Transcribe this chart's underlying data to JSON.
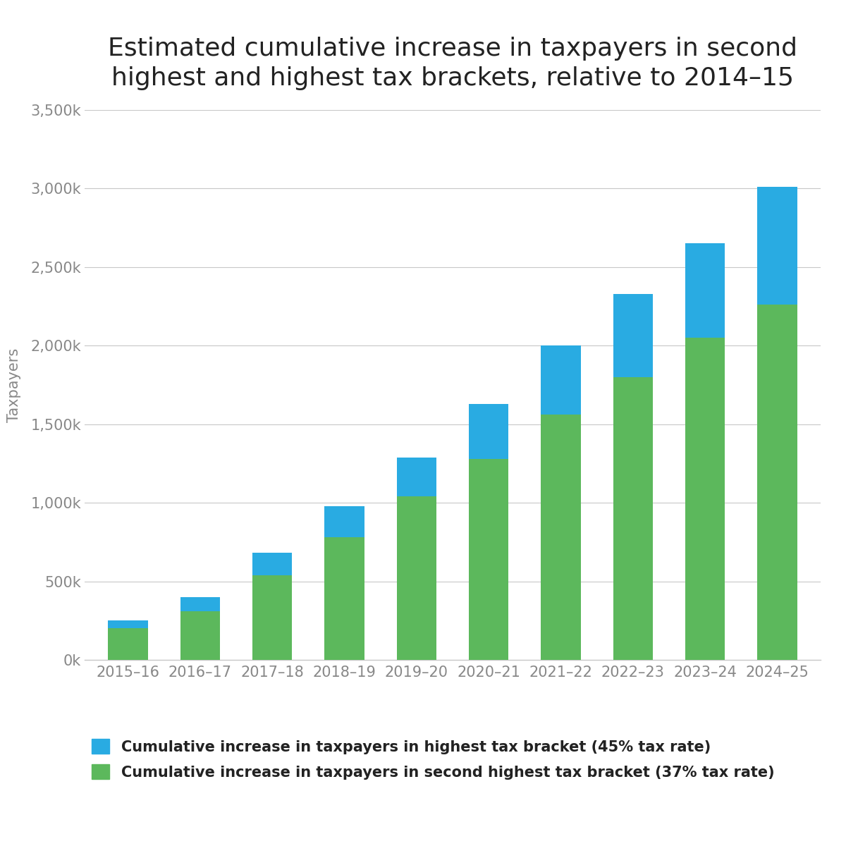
{
  "title": "Estimated cumulative increase in taxpayers in second\nhighest and highest tax brackets, relative to 2014–15",
  "categories": [
    "2015–16",
    "2016–17",
    "2017–18",
    "2018–19",
    "2019–20",
    "2020–21",
    "2021–22",
    "2022–23",
    "2023–24",
    "2024–25"
  ],
  "green_values": [
    200000,
    310000,
    540000,
    780000,
    1040000,
    1280000,
    1560000,
    1800000,
    2050000,
    2260000
  ],
  "blue_values": [
    50000,
    90000,
    140000,
    200000,
    250000,
    350000,
    440000,
    530000,
    600000,
    750000
  ],
  "green_color": "#5CB85C",
  "blue_color": "#29ABE2",
  "ylabel": "Taxpayers",
  "ylim": [
    0,
    3500000
  ],
  "yticks": [
    0,
    500000,
    1000000,
    1500000,
    2000000,
    2500000,
    3000000,
    3500000
  ],
  "ytick_labels": [
    "0k",
    "500k",
    "1,000k",
    "1,500k",
    "2,000k",
    "2,500k",
    "3,000k",
    "3,500k"
  ],
  "legend_blue": "Cumulative increase in taxpayers in highest tax bracket (45% tax rate)",
  "legend_green": "Cumulative increase in taxpayers in second highest tax bracket (37% tax rate)",
  "background_color": "#ffffff",
  "grid_color": "#c8c8c8",
  "title_fontsize": 26,
  "label_fontsize": 15,
  "tick_fontsize": 15,
  "legend_fontsize": 15,
  "bar_width": 0.55
}
